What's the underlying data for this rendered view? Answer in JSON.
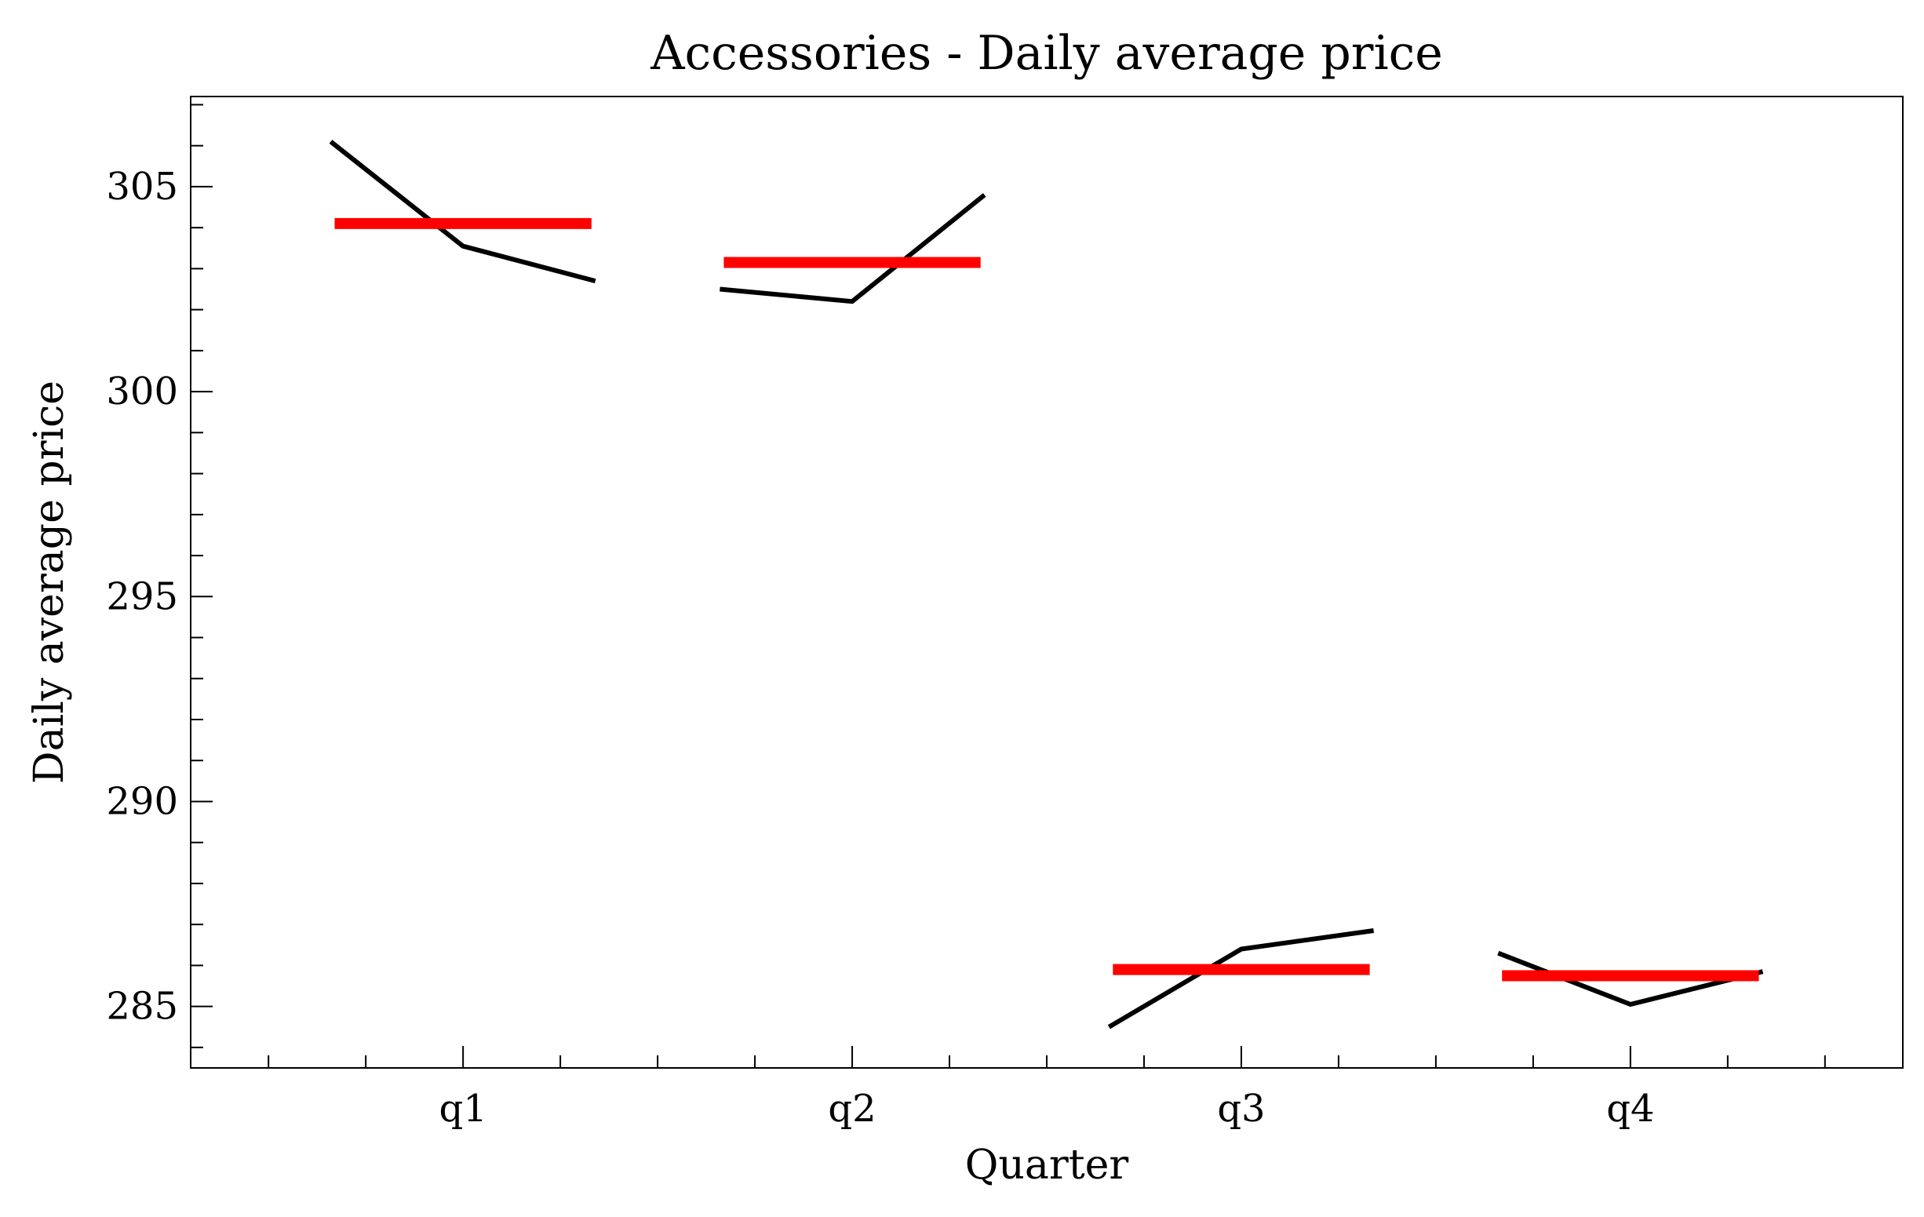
{
  "chart_data": {
    "type": "line",
    "title": "Accessories - Daily average price",
    "xlabel": "Quarter",
    "ylabel": "Daily average price",
    "categories": [
      "q1",
      "q2",
      "q3",
      "q4"
    ],
    "ylim": [
      283.5,
      307.2
    ],
    "yticks": [
      285,
      290,
      295,
      300,
      305
    ],
    "ytick_labels": [
      "285",
      "290",
      "295",
      "300",
      "305"
    ],
    "grid": false,
    "legend": "none",
    "series_color": "#000000",
    "mean_color": "#ff0000",
    "groups": [
      {
        "category": "q1",
        "values": [
          306.1,
          303.55,
          302.7
        ],
        "mean": 304.1
      },
      {
        "category": "q2",
        "values": [
          302.5,
          302.2,
          304.8
        ],
        "mean": 303.15
      },
      {
        "category": "q3",
        "values": [
          284.5,
          286.4,
          286.85
        ],
        "mean": 285.9
      },
      {
        "category": "q4",
        "values": [
          286.3,
          285.05,
          285.85
        ],
        "mean": 285.75
      }
    ]
  }
}
